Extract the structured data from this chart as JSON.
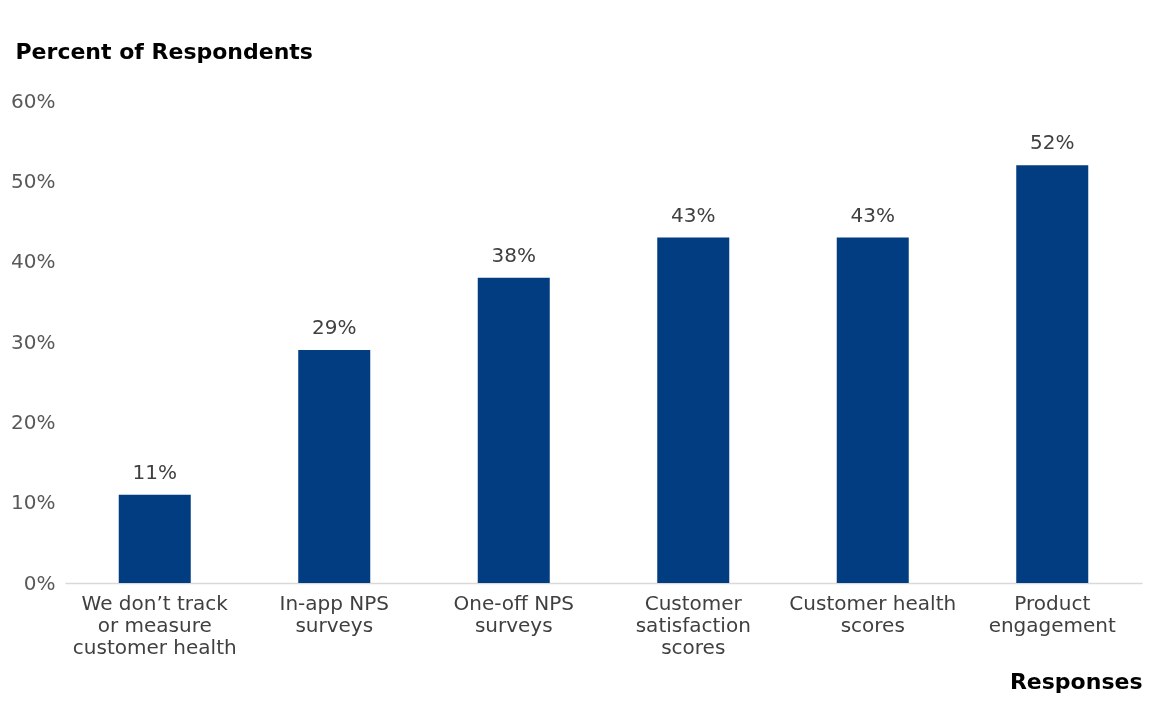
{
  "chart_data": {
    "type": "bar",
    "ylabel": "Percent of Respondents",
    "xlabel": "Responses",
    "categories": [
      "We don’t track or measure customer health",
      "In-app NPS surveys",
      "One-off NPS surveys",
      "Customer satisfaction scores",
      "Customer health scores",
      "Product engagement"
    ],
    "values": [
      11,
      29,
      38,
      43,
      43,
      52
    ],
    "value_labels": [
      "11%",
      "29%",
      "38%",
      "43%",
      "43%",
      "52%"
    ],
    "color": "#013d80",
    "ylim": [
      0,
      60
    ],
    "yticks": [
      {
        "value": 0,
        "label": "0%"
      },
      {
        "value": 10,
        "label": "10%"
      },
      {
        "value": 20,
        "label": "20%"
      },
      {
        "value": 30,
        "label": "30%"
      },
      {
        "value": 40,
        "label": "40%"
      },
      {
        "value": 50,
        "label": "50%"
      },
      {
        "value": 60,
        "label": "60%"
      }
    ],
    "grid": false
  }
}
